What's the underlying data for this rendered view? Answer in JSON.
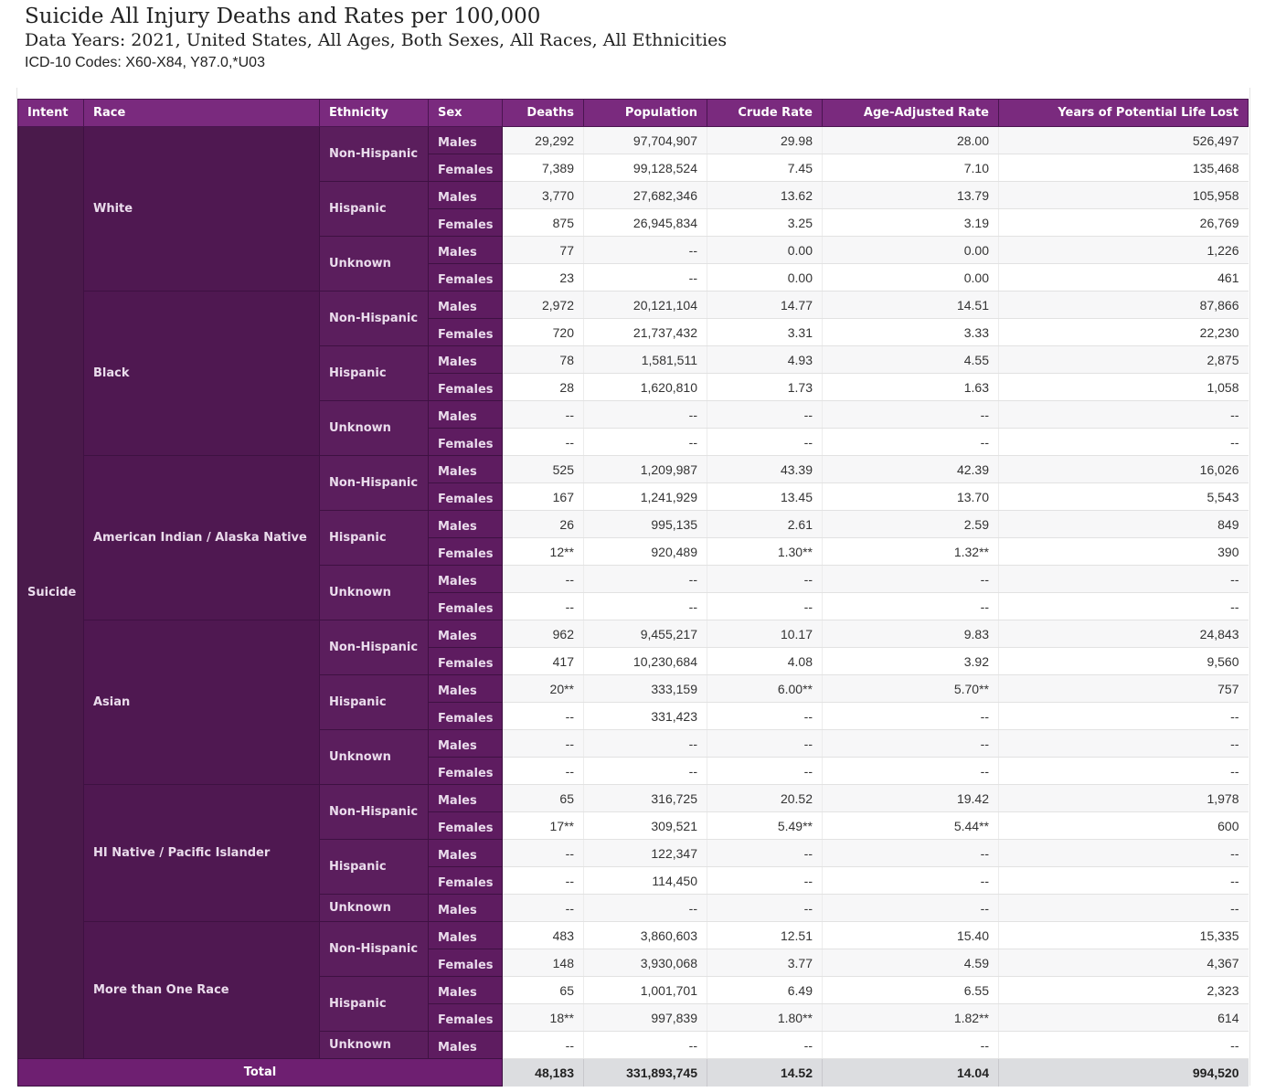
{
  "header": {
    "title": "Suicide All Injury Deaths and Rates per 100,000",
    "subtitle": "Data Years: 2021, United States, All Ages, Both Sexes, All Races, All Ethnicities",
    "codes": "ICD-10 Codes: X60-X84, Y87.0,*U03"
  },
  "table": {
    "columns": [
      "Intent",
      "Race",
      "Ethnicity",
      "Sex",
      "Deaths",
      "Population",
      "Crude Rate",
      "Age-Adjusted Rate",
      "Years of Potential Life Lost"
    ],
    "intent": "Suicide",
    "races": [
      {
        "race": "White",
        "ethnicities": [
          {
            "ethnicity": "Non-Hispanic",
            "rows": [
              {
                "sex": "Males",
                "deaths": "29,292",
                "population": "97,704,907",
                "crude_rate": "29.98",
                "age_adjusted_rate": "28.00",
                "ypll": "526,497"
              },
              {
                "sex": "Females",
                "deaths": "7,389",
                "population": "99,128,524",
                "crude_rate": "7.45",
                "age_adjusted_rate": "7.10",
                "ypll": "135,468"
              }
            ]
          },
          {
            "ethnicity": "Hispanic",
            "rows": [
              {
                "sex": "Males",
                "deaths": "3,770",
                "population": "27,682,346",
                "crude_rate": "13.62",
                "age_adjusted_rate": "13.79",
                "ypll": "105,958"
              },
              {
                "sex": "Females",
                "deaths": "875",
                "population": "26,945,834",
                "crude_rate": "3.25",
                "age_adjusted_rate": "3.19",
                "ypll": "26,769"
              }
            ]
          },
          {
            "ethnicity": "Unknown",
            "rows": [
              {
                "sex": "Males",
                "deaths": "77",
                "population": "--",
                "crude_rate": "0.00",
                "age_adjusted_rate": "0.00",
                "ypll": "1,226"
              },
              {
                "sex": "Females",
                "deaths": "23",
                "population": "--",
                "crude_rate": "0.00",
                "age_adjusted_rate": "0.00",
                "ypll": "461"
              }
            ]
          }
        ]
      },
      {
        "race": "Black",
        "ethnicities": [
          {
            "ethnicity": "Non-Hispanic",
            "rows": [
              {
                "sex": "Males",
                "deaths": "2,972",
                "population": "20,121,104",
                "crude_rate": "14.77",
                "age_adjusted_rate": "14.51",
                "ypll": "87,866"
              },
              {
                "sex": "Females",
                "deaths": "720",
                "population": "21,737,432",
                "crude_rate": "3.31",
                "age_adjusted_rate": "3.33",
                "ypll": "22,230"
              }
            ]
          },
          {
            "ethnicity": "Hispanic",
            "rows": [
              {
                "sex": "Males",
                "deaths": "78",
                "population": "1,581,511",
                "crude_rate": "4.93",
                "age_adjusted_rate": "4.55",
                "ypll": "2,875"
              },
              {
                "sex": "Females",
                "deaths": "28",
                "population": "1,620,810",
                "crude_rate": "1.73",
                "age_adjusted_rate": "1.63",
                "ypll": "1,058"
              }
            ]
          },
          {
            "ethnicity": "Unknown",
            "rows": [
              {
                "sex": "Males",
                "deaths": "--",
                "population": "--",
                "crude_rate": "--",
                "age_adjusted_rate": "--",
                "ypll": "--"
              },
              {
                "sex": "Females",
                "deaths": "--",
                "population": "--",
                "crude_rate": "--",
                "age_adjusted_rate": "--",
                "ypll": "--"
              }
            ]
          }
        ]
      },
      {
        "race": "American Indian / Alaska Native",
        "ethnicities": [
          {
            "ethnicity": "Non-Hispanic",
            "rows": [
              {
                "sex": "Males",
                "deaths": "525",
                "population": "1,209,987",
                "crude_rate": "43.39",
                "age_adjusted_rate": "42.39",
                "ypll": "16,026"
              },
              {
                "sex": "Females",
                "deaths": "167",
                "population": "1,241,929",
                "crude_rate": "13.45",
                "age_adjusted_rate": "13.70",
                "ypll": "5,543"
              }
            ]
          },
          {
            "ethnicity": "Hispanic",
            "rows": [
              {
                "sex": "Males",
                "deaths": "26",
                "population": "995,135",
                "crude_rate": "2.61",
                "age_adjusted_rate": "2.59",
                "ypll": "849"
              },
              {
                "sex": "Females",
                "deaths": "12**",
                "population": "920,489",
                "crude_rate": "1.30**",
                "age_adjusted_rate": "1.32**",
                "ypll": "390"
              }
            ]
          },
          {
            "ethnicity": "Unknown",
            "rows": [
              {
                "sex": "Males",
                "deaths": "--",
                "population": "--",
                "crude_rate": "--",
                "age_adjusted_rate": "--",
                "ypll": "--"
              },
              {
                "sex": "Females",
                "deaths": "--",
                "population": "--",
                "crude_rate": "--",
                "age_adjusted_rate": "--",
                "ypll": "--"
              }
            ]
          }
        ]
      },
      {
        "race": "Asian",
        "ethnicities": [
          {
            "ethnicity": "Non-Hispanic",
            "rows": [
              {
                "sex": "Males",
                "deaths": "962",
                "population": "9,455,217",
                "crude_rate": "10.17",
                "age_adjusted_rate": "9.83",
                "ypll": "24,843"
              },
              {
                "sex": "Females",
                "deaths": "417",
                "population": "10,230,684",
                "crude_rate": "4.08",
                "age_adjusted_rate": "3.92",
                "ypll": "9,560"
              }
            ]
          },
          {
            "ethnicity": "Hispanic",
            "rows": [
              {
                "sex": "Males",
                "deaths": "20**",
                "population": "333,159",
                "crude_rate": "6.00**",
                "age_adjusted_rate": "5.70**",
                "ypll": "757"
              },
              {
                "sex": "Females",
                "deaths": "--",
                "population": "331,423",
                "crude_rate": "--",
                "age_adjusted_rate": "--",
                "ypll": "--"
              }
            ]
          },
          {
            "ethnicity": "Unknown",
            "rows": [
              {
                "sex": "Males",
                "deaths": "--",
                "population": "--",
                "crude_rate": "--",
                "age_adjusted_rate": "--",
                "ypll": "--"
              },
              {
                "sex": "Females",
                "deaths": "--",
                "population": "--",
                "crude_rate": "--",
                "age_adjusted_rate": "--",
                "ypll": "--"
              }
            ]
          }
        ]
      },
      {
        "race": "HI Native / Pacific Islander",
        "ethnicities": [
          {
            "ethnicity": "Non-Hispanic",
            "rows": [
              {
                "sex": "Males",
                "deaths": "65",
                "population": "316,725",
                "crude_rate": "20.52",
                "age_adjusted_rate": "19.42",
                "ypll": "1,978"
              },
              {
                "sex": "Females",
                "deaths": "17**",
                "population": "309,521",
                "crude_rate": "5.49**",
                "age_adjusted_rate": "5.44**",
                "ypll": "600"
              }
            ]
          },
          {
            "ethnicity": "Hispanic",
            "rows": [
              {
                "sex": "Males",
                "deaths": "--",
                "population": "122,347",
                "crude_rate": "--",
                "age_adjusted_rate": "--",
                "ypll": "--"
              },
              {
                "sex": "Females",
                "deaths": "--",
                "population": "114,450",
                "crude_rate": "--",
                "age_adjusted_rate": "--",
                "ypll": "--"
              }
            ]
          },
          {
            "ethnicity": "Unknown",
            "rows": [
              {
                "sex": "Males",
                "deaths": "--",
                "population": "--",
                "crude_rate": "--",
                "age_adjusted_rate": "--",
                "ypll": "--"
              }
            ]
          }
        ]
      },
      {
        "race": "More than One Race",
        "ethnicities": [
          {
            "ethnicity": "Non-Hispanic",
            "rows": [
              {
                "sex": "Males",
                "deaths": "483",
                "population": "3,860,603",
                "crude_rate": "12.51",
                "age_adjusted_rate": "15.40",
                "ypll": "15,335"
              },
              {
                "sex": "Females",
                "deaths": "148",
                "population": "3,930,068",
                "crude_rate": "3.77",
                "age_adjusted_rate": "4.59",
                "ypll": "4,367"
              }
            ]
          },
          {
            "ethnicity": "Hispanic",
            "rows": [
              {
                "sex": "Males",
                "deaths": "65",
                "population": "1,001,701",
                "crude_rate": "6.49",
                "age_adjusted_rate": "6.55",
                "ypll": "2,323"
              },
              {
                "sex": "Females",
                "deaths": "18**",
                "population": "997,839",
                "crude_rate": "1.80**",
                "age_adjusted_rate": "1.82**",
                "ypll": "614"
              }
            ]
          },
          {
            "ethnicity": "Unknown",
            "rows": [
              {
                "sex": "Males",
                "deaths": "--",
                "population": "--",
                "crude_rate": "--",
                "age_adjusted_rate": "--",
                "ypll": "--"
              }
            ]
          }
        ]
      }
    ],
    "total": {
      "label": "Total",
      "deaths": "48,183",
      "population": "331,893,745",
      "crude_rate": "14.52",
      "age_adjusted_rate": "14.04",
      "ypll": "994,520"
    }
  },
  "colors": {
    "header_purple": "#7a2a7e",
    "dimension_purple": "#4f1851",
    "total_bar": "#6e1f71",
    "total_values_bg": "#dcdde0"
  }
}
